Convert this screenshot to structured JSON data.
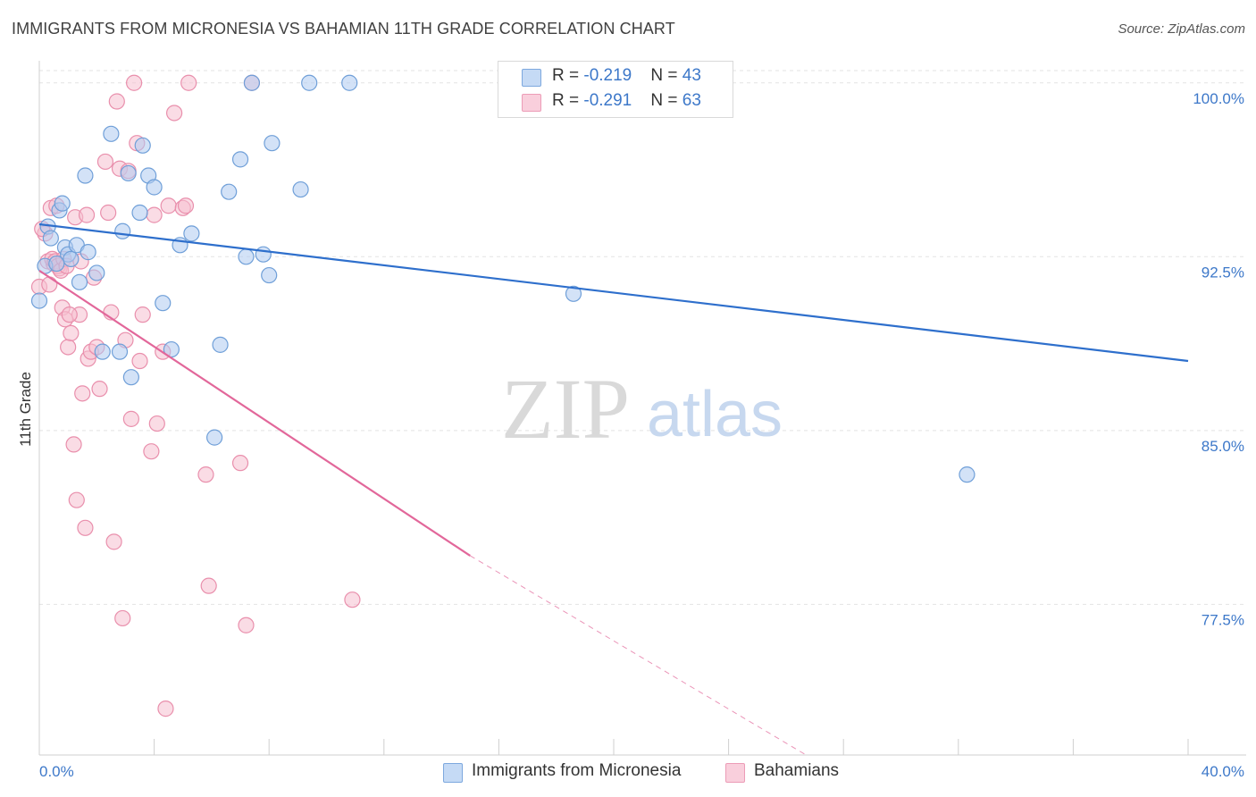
{
  "title": "IMMIGRANTS FROM MICRONESIA VS BAHAMIAN 11TH GRADE CORRELATION CHART",
  "source": "Source: ZipAtlas.com",
  "watermark": {
    "zip": "ZIP",
    "atlas": "atlas"
  },
  "legend": {
    "series1": {
      "r_label": "R = ",
      "r_value": "-0.219",
      "n_label": "N = ",
      "n_value": "43"
    },
    "series2": {
      "r_label": "R = ",
      "r_value": "-0.291",
      "n_label": "N = ",
      "n_value": "63"
    }
  },
  "colors": {
    "blue_fill": "#aecbf0",
    "blue_stroke": "#6f9fd8",
    "blue_line": "#2e6fcc",
    "pink_fill": "#f6bfd0",
    "pink_stroke": "#e98fac",
    "pink_line": "#e2679a",
    "tick_label": "#3d78c9",
    "grid": "#e3e3e3"
  },
  "chart_data": {
    "type": "scatter",
    "title": "IMMIGRANTS FROM MICRONESIA VS BAHAMIAN 11TH GRADE CORRELATION CHART",
    "xlabel": "",
    "ylabel": "11th Grade",
    "xlim": [
      0,
      40
    ],
    "ylim": [
      71.0,
      100.8
    ],
    "x_tick_labels": [
      "0.0%",
      "40.0%"
    ],
    "y_ticks": [
      77.5,
      85.0,
      92.5,
      100.0
    ],
    "y_tick_labels": [
      "77.5%",
      "85.0%",
      "92.5%",
      "100.0%"
    ],
    "grid": true,
    "series": [
      {
        "name": "Immigrants from Micronesia",
        "r": -0.219,
        "n": 43,
        "trend": {
          "x0": 0,
          "y0": 93.9,
          "x1": 40,
          "y1": 88.0
        },
        "points": [
          [
            0.0,
            90.6
          ],
          [
            0.3,
            93.8
          ],
          [
            0.4,
            93.3
          ],
          [
            0.7,
            94.5
          ],
          [
            0.8,
            94.8
          ],
          [
            0.9,
            92.9
          ],
          [
            1.0,
            92.6
          ],
          [
            1.1,
            92.4
          ],
          [
            1.3,
            93.0
          ],
          [
            1.4,
            91.4
          ],
          [
            1.6,
            96.0
          ],
          [
            1.7,
            92.7
          ],
          [
            2.0,
            91.8
          ],
          [
            2.2,
            88.4
          ],
          [
            2.5,
            97.8
          ],
          [
            2.8,
            88.4
          ],
          [
            2.9,
            93.6
          ],
          [
            3.1,
            96.1
          ],
          [
            3.2,
            87.3
          ],
          [
            3.5,
            94.4
          ],
          [
            3.6,
            97.3
          ],
          [
            3.8,
            96.0
          ],
          [
            4.0,
            95.5
          ],
          [
            4.3,
            90.5
          ],
          [
            4.6,
            88.5
          ],
          [
            4.9,
            93.0
          ],
          [
            5.3,
            93.5
          ],
          [
            6.1,
            84.7
          ],
          [
            6.3,
            88.7
          ],
          [
            6.6,
            95.3
          ],
          [
            7.0,
            96.7
          ],
          [
            7.2,
            92.5
          ],
          [
            7.4,
            100.0
          ],
          [
            7.8,
            92.6
          ],
          [
            8.0,
            91.7
          ],
          [
            8.1,
            97.4
          ],
          [
            9.1,
            95.4
          ],
          [
            9.4,
            100.0
          ],
          [
            10.8,
            100.0
          ],
          [
            18.6,
            90.9
          ],
          [
            32.3,
            83.1
          ],
          [
            0.2,
            92.1
          ],
          [
            0.6,
            92.2
          ]
        ]
      },
      {
        "name": "Bahamians",
        "r": -0.291,
        "n": 63,
        "trend": {
          "x0": 0,
          "y0": 91.9,
          "x1": 15.0,
          "y1": 79.6
        },
        "trend_dashed_to": {
          "x": 26.7,
          "y": 71.0
        },
        "points": [
          [
            0.0,
            91.2
          ],
          [
            0.2,
            93.5
          ],
          [
            0.3,
            92.3
          ],
          [
            0.4,
            94.6
          ],
          [
            0.5,
            92.2
          ],
          [
            0.6,
            94.7
          ],
          [
            0.7,
            92.0
          ],
          [
            0.8,
            90.3
          ],
          [
            0.9,
            89.8
          ],
          [
            1.0,
            88.6
          ],
          [
            1.1,
            89.2
          ],
          [
            1.2,
            84.4
          ],
          [
            1.3,
            82.0
          ],
          [
            1.4,
            90.0
          ],
          [
            1.5,
            86.6
          ],
          [
            1.6,
            80.8
          ],
          [
            1.7,
            88.1
          ],
          [
            1.8,
            88.4
          ],
          [
            1.9,
            91.6
          ],
          [
            2.0,
            88.6
          ],
          [
            2.1,
            86.8
          ],
          [
            2.3,
            96.6
          ],
          [
            2.4,
            94.4
          ],
          [
            2.5,
            90.1
          ],
          [
            2.6,
            80.2
          ],
          [
            2.7,
            99.2
          ],
          [
            2.8,
            96.3
          ],
          [
            2.9,
            76.9
          ],
          [
            3.0,
            88.9
          ],
          [
            3.1,
            96.2
          ],
          [
            3.2,
            85.5
          ],
          [
            3.3,
            100.0
          ],
          [
            3.4,
            97.4
          ],
          [
            3.5,
            88.0
          ],
          [
            3.6,
            90.0
          ],
          [
            3.9,
            84.1
          ],
          [
            4.0,
            94.3
          ],
          [
            4.1,
            85.3
          ],
          [
            4.3,
            88.4
          ],
          [
            4.4,
            73.0
          ],
          [
            4.5,
            94.7
          ],
          [
            4.7,
            98.7
          ],
          [
            5.0,
            94.6
          ],
          [
            5.1,
            94.7
          ],
          [
            5.2,
            100.0
          ],
          [
            5.8,
            83.1
          ],
          [
            5.9,
            78.3
          ],
          [
            7.0,
            83.6
          ],
          [
            7.2,
            76.6
          ],
          [
            7.4,
            100.0
          ],
          [
            10.9,
            77.7
          ],
          [
            0.1,
            93.7
          ],
          [
            0.35,
            91.3
          ],
          [
            0.45,
            92.4
          ],
          [
            0.55,
            92.3
          ],
          [
            0.65,
            92.1
          ],
          [
            0.75,
            91.9
          ],
          [
            0.85,
            92.4
          ],
          [
            0.95,
            92.1
          ],
          [
            1.05,
            90.0
          ],
          [
            1.25,
            94.2
          ],
          [
            1.45,
            92.3
          ],
          [
            1.65,
            94.3
          ]
        ]
      }
    ]
  },
  "bottom_legend": {
    "item1": "Immigrants from Micronesia",
    "item2": "Bahamians"
  }
}
